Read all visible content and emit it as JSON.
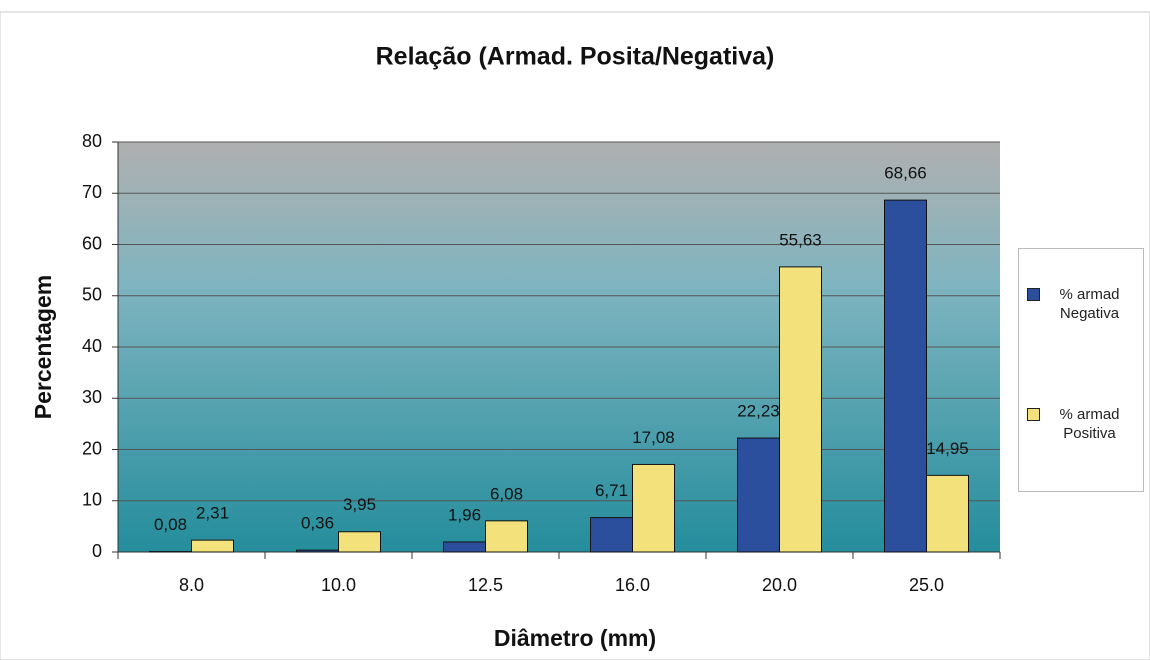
{
  "chart_data": {
    "type": "bar",
    "title": "Relação (Armad. Posita/Negativa)",
    "xlabel": "Diâmetro (mm)",
    "ylabel": "Percentagem",
    "categories": [
      "8.0",
      "10.0",
      "12.5",
      "16.0",
      "20.0",
      "25.0"
    ],
    "series": [
      {
        "name": "% armad Negativa",
        "color": "#2b4f9c",
        "values": [
          0.08,
          0.36,
          1.96,
          6.71,
          22.23,
          68.66
        ],
        "value_labels": [
          "0,08",
          "0,36",
          "1,96",
          "6,71",
          "22,23",
          "68,66"
        ]
      },
      {
        "name": "% armad Positiva",
        "color": "#f3e27c",
        "values": [
          2.31,
          3.95,
          6.08,
          17.08,
          55.63,
          14.95
        ],
        "value_labels": [
          "2,31",
          "3,95",
          "6,08",
          "17,08",
          "55,63",
          "14,95"
        ]
      }
    ],
    "ylim": [
      0,
      80
    ],
    "yticks": [
      0,
      10,
      20,
      30,
      40,
      50,
      60,
      70,
      80
    ],
    "grid": true,
    "legend": "right"
  }
}
